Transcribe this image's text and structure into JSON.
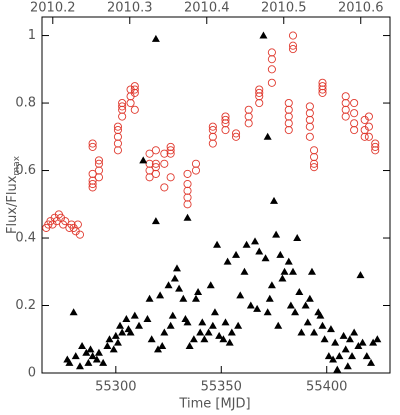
{
  "chart_data": {
    "type": "scatter",
    "x_label": "Time [MJD]",
    "y_label": "Flux/Flux",
    "y_label_sub": "max",
    "xlim": [
      55265,
      55430
    ],
    "xticks": [
      55300,
      55350,
      55400
    ],
    "x2lim": [
      2010.186,
      2010.638
    ],
    "x2ticks": [
      2010.2,
      2010.3,
      2010.4,
      2010.5,
      2010.6
    ],
    "ylim": [
      0,
      1.055
    ],
    "yticks": [
      0,
      0.2,
      0.4,
      0.6,
      0.8,
      1
    ],
    "grid": false,
    "series": [
      {
        "marker": "circle",
        "color": "#e03a2f",
        "x": [
          55267,
          55268,
          55269,
          55270,
          55271,
          55272,
          55273,
          55274,
          55275,
          55276,
          55278,
          55279,
          55280,
          55281,
          55282,
          55283,
          55289,
          55289,
          55289,
          55289,
          55289,
          55289,
          55292,
          55292,
          55292,
          55292,
          55301,
          55301,
          55301,
          55301,
          55301,
          55303,
          55303,
          55303,
          55303,
          55307,
          55307,
          55307,
          55309,
          55309,
          55309,
          55309,
          55316,
          55316,
          55316,
          55316,
          55319,
          55319,
          55319,
          55319,
          55323,
          55323,
          55323,
          55326,
          55326,
          55326,
          55326,
          55334,
          55334,
          55334,
          55334,
          55334,
          55338,
          55338,
          55346,
          55346,
          55346,
          55346,
          55352,
          55352,
          55352,
          55352,
          55357,
          55357,
          55363,
          55363,
          55363,
          55368,
          55368,
          55368,
          55368,
          55374,
          55374,
          55374,
          55374,
          55382,
          55382,
          55382,
          55382,
          55382,
          55384,
          55384,
          55384,
          55392,
          55392,
          55392,
          55392,
          55392,
          55394,
          55394,
          55394,
          55394,
          55398,
          55398,
          55398,
          55398,
          55409,
          55409,
          55409,
          55409,
          55413,
          55413,
          55413,
          55413,
          55418,
          55418,
          55418,
          55420,
          55420,
          55420,
          55423,
          55423,
          55423
        ],
        "values": [
          0.43,
          0.44,
          0.45,
          0.44,
          0.46,
          0.45,
          0.47,
          0.46,
          0.44,
          0.45,
          0.43,
          0.44,
          0.43,
          0.42,
          0.44,
          0.41,
          0.55,
          0.56,
          0.57,
          0.59,
          0.67,
          0.68,
          0.58,
          0.6,
          0.62,
          0.63,
          0.66,
          0.68,
          0.7,
          0.72,
          0.73,
          0.76,
          0.78,
          0.79,
          0.8,
          0.8,
          0.82,
          0.84,
          0.83,
          0.84,
          0.85,
          0.78,
          0.58,
          0.6,
          0.62,
          0.65,
          0.59,
          0.61,
          0.66,
          0.62,
          0.55,
          0.62,
          0.65,
          0.58,
          0.65,
          0.66,
          0.67,
          0.5,
          0.52,
          0.54,
          0.56,
          0.59,
          0.6,
          0.62,
          0.68,
          0.7,
          0.72,
          0.73,
          0.72,
          0.74,
          0.75,
          0.76,
          0.7,
          0.71,
          0.74,
          0.76,
          0.78,
          0.8,
          0.82,
          0.84,
          0.83,
          0.86,
          0.9,
          0.93,
          0.95,
          0.72,
          0.74,
          0.76,
          0.78,
          0.8,
          0.96,
          0.97,
          1.0,
          0.7,
          0.73,
          0.75,
          0.77,
          0.79,
          0.64,
          0.66,
          0.62,
          0.61,
          0.83,
          0.84,
          0.85,
          0.86,
          0.76,
          0.78,
          0.8,
          0.82,
          0.72,
          0.74,
          0.77,
          0.8,
          0.7,
          0.72,
          0.75,
          0.7,
          0.73,
          0.76,
          0.66,
          0.67,
          0.68
        ]
      },
      {
        "marker": "triangle",
        "color": "#000000",
        "x": [
          55277,
          55278,
          55280,
          55281,
          55283,
          55284,
          55286,
          55287,
          55288,
          55289,
          55291,
          55292,
          55294,
          55296,
          55297,
          55299,
          55300,
          55301,
          55302,
          55303,
          55305,
          55306,
          55307,
          55309,
          55311,
          55313,
          55315,
          55316,
          55317,
          55319,
          55319,
          55320,
          55321,
          55322,
          55323,
          55325,
          55326,
          55327,
          55328,
          55329,
          55330,
          55332,
          55333,
          55334,
          55334,
          55335,
          55337,
          55338,
          55339,
          55340,
          55341,
          55342,
          55344,
          55345,
          55346,
          55347,
          55348,
          55349,
          55351,
          55352,
          55353,
          55354,
          55355,
          55357,
          55358,
          55359,
          55361,
          55362,
          55364,
          55366,
          55367,
          55368,
          55370,
          55371,
          55372,
          55372,
          55373,
          55374,
          55375,
          55376,
          55377,
          55378,
          55379,
          55380,
          55382,
          55383,
          55384,
          55385,
          55386,
          55387,
          55388,
          55390,
          55391,
          55392,
          55393,
          55394,
          55396,
          55397,
          55398,
          55399,
          55401,
          55402,
          55403,
          55404,
          55405,
          55406,
          55408,
          55409,
          55410,
          55411,
          55412,
          55413,
          55415,
          55416,
          55417,
          55419,
          55421,
          55422,
          55424
        ],
        "values": [
          0.04,
          0.03,
          0.18,
          0.05,
          0.02,
          0.08,
          0.06,
          0.03,
          0.07,
          0.05,
          0.04,
          0.06,
          0.03,
          0.08,
          0.1,
          0.07,
          0.11,
          0.09,
          0.14,
          0.12,
          0.16,
          0.13,
          0.12,
          0.17,
          0.14,
          0.63,
          0.16,
          0.22,
          0.1,
          0.99,
          0.45,
          0.07,
          0.23,
          0.08,
          0.12,
          0.26,
          0.14,
          0.17,
          0.28,
          0.31,
          0.25,
          0.22,
          0.16,
          0.15,
          0.46,
          0.08,
          0.1,
          0.22,
          0.24,
          0.12,
          0.15,
          0.1,
          0.12,
          0.26,
          0.14,
          0.18,
          0.38,
          0.11,
          0.1,
          0.15,
          0.33,
          0.09,
          0.12,
          0.35,
          0.14,
          0.23,
          0.3,
          0.38,
          0.2,
          0.39,
          0.19,
          0.36,
          1.0,
          0.34,
          0.7,
          0.18,
          0.22,
          0.26,
          0.51,
          0.41,
          0.14,
          0.35,
          0.28,
          0.3,
          0.33,
          0.2,
          0.3,
          0.18,
          0.4,
          0.24,
          0.12,
          0.2,
          0.15,
          0.22,
          0.3,
          0.12,
          0.18,
          0.17,
          0.14,
          0.1,
          0.05,
          0.13,
          0.04,
          0.09,
          0.01,
          0.05,
          0.11,
          0.07,
          0.02,
          0.1,
          0.05,
          0.12,
          0.08,
          0.29,
          0.09,
          0.05,
          0.03,
          0.09,
          0.1
        ]
      }
    ]
  }
}
